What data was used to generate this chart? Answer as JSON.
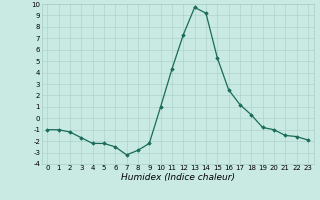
{
  "x": [
    0,
    1,
    2,
    3,
    4,
    5,
    6,
    7,
    8,
    9,
    10,
    11,
    12,
    13,
    14,
    15,
    16,
    17,
    18,
    19,
    20,
    21,
    22,
    23
  ],
  "y": [
    -1,
    -1,
    -1.2,
    -1.7,
    -2.2,
    -2.2,
    -2.5,
    -3.2,
    -2.8,
    -2.2,
    1.0,
    4.3,
    7.3,
    9.7,
    9.2,
    5.3,
    2.5,
    1.2,
    0.3,
    -0.8,
    -1.0,
    -1.5,
    -1.6,
    -1.9
  ],
  "line_color": "#1a6b5a",
  "marker": "D",
  "markersize": 1.8,
  "linewidth": 0.9,
  "bg_color": "#c8eae2",
  "grid_color": "#a8cec8",
  "xlabel": "Humidex (Indice chaleur)",
  "xlabel_style": "italic",
  "ylim": [
    -4,
    10
  ],
  "xlim": [
    -0.5,
    23.5
  ],
  "yticks": [
    -4,
    -3,
    -2,
    -1,
    0,
    1,
    2,
    3,
    4,
    5,
    6,
    7,
    8,
    9,
    10
  ],
  "xticks": [
    0,
    1,
    2,
    3,
    4,
    5,
    6,
    7,
    8,
    9,
    10,
    11,
    12,
    13,
    14,
    15,
    16,
    17,
    18,
    19,
    20,
    21,
    22,
    23
  ],
  "tick_fontsize": 5.0,
  "xlabel_fontsize": 6.5
}
